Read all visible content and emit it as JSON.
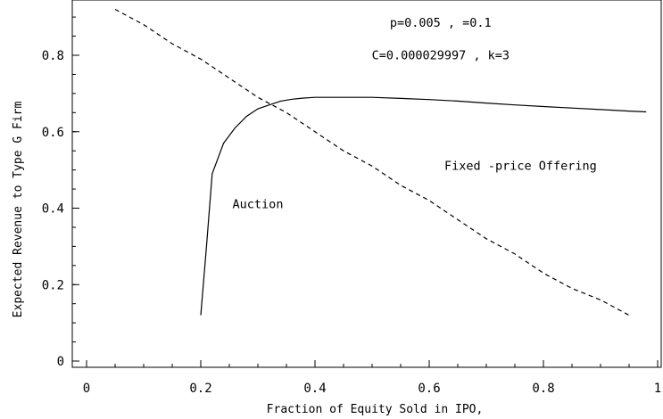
{
  "chart_data": {
    "type": "line",
    "xlabel": "Fraction   of Equity  Sold  in IPO,",
    "ylabel": "Expected Revenue to Type G Firm",
    "xlim": [
      0,
      1
    ],
    "ylim": [
      0,
      0.95
    ],
    "x_ticks": [
      {
        "value": 0,
        "label": "0"
      },
      {
        "value": 0.2,
        "label": "0.2"
      },
      {
        "value": 0.4,
        "label": "0.4"
      },
      {
        "value": 0.6,
        "label": "0.6"
      },
      {
        "value": 0.8,
        "label": "0.8"
      },
      {
        "value": 1,
        "label": "1"
      }
    ],
    "y_ticks": [
      {
        "value": 0,
        "label": "0"
      },
      {
        "value": 0.2,
        "label": "0.2"
      },
      {
        "value": 0.4,
        "label": "0.4"
      },
      {
        "value": 0.6,
        "label": "0.6"
      },
      {
        "value": 0.8,
        "label": "0.8"
      }
    ],
    "minor_tick_step": 0.05,
    "grid": false,
    "series": [
      {
        "name": "Auction",
        "style": "solid",
        "color": "#000000",
        "points": [
          [
            0.2,
            0.12
          ],
          [
            0.21,
            0.3
          ],
          [
            0.22,
            0.49
          ],
          [
            0.24,
            0.57
          ],
          [
            0.26,
            0.61
          ],
          [
            0.28,
            0.64
          ],
          [
            0.3,
            0.66
          ],
          [
            0.32,
            0.67
          ],
          [
            0.34,
            0.68
          ],
          [
            0.36,
            0.685
          ],
          [
            0.38,
            0.688
          ],
          [
            0.4,
            0.69
          ],
          [
            0.45,
            0.69
          ],
          [
            0.5,
            0.69
          ],
          [
            0.55,
            0.687
          ],
          [
            0.6,
            0.684
          ],
          [
            0.65,
            0.68
          ],
          [
            0.7,
            0.675
          ],
          [
            0.75,
            0.67
          ],
          [
            0.8,
            0.666
          ],
          [
            0.85,
            0.662
          ],
          [
            0.9,
            0.658
          ],
          [
            0.95,
            0.654
          ],
          [
            0.98,
            0.652
          ]
        ]
      },
      {
        "name": "Fixed -price  Offering",
        "style": "dashed",
        "color": "#000000",
        "points": [
          [
            0.05,
            0.92
          ],
          [
            0.1,
            0.88
          ],
          [
            0.15,
            0.83
          ],
          [
            0.2,
            0.79
          ],
          [
            0.25,
            0.74
          ],
          [
            0.3,
            0.69
          ],
          [
            0.35,
            0.65
          ],
          [
            0.4,
            0.6
          ],
          [
            0.45,
            0.55
          ],
          [
            0.5,
            0.51
          ],
          [
            0.55,
            0.46
          ],
          [
            0.6,
            0.42
          ],
          [
            0.65,
            0.37
          ],
          [
            0.7,
            0.32
          ],
          [
            0.75,
            0.28
          ],
          [
            0.8,
            0.23
          ],
          [
            0.85,
            0.19
          ],
          [
            0.9,
            0.16
          ],
          [
            0.95,
            0.12
          ]
        ]
      }
    ],
    "annotations": [
      {
        "text": "p=0.005 ,   =0.1",
        "x": 0.62,
        "y": 0.875
      },
      {
        "text": "C=0.000029997   , k=3",
        "x": 0.62,
        "y": 0.79
      },
      {
        "text": "Fixed -price  Offering",
        "x": 0.76,
        "y": 0.5
      },
      {
        "text": "Auction",
        "x": 0.3,
        "y": 0.4
      }
    ]
  }
}
